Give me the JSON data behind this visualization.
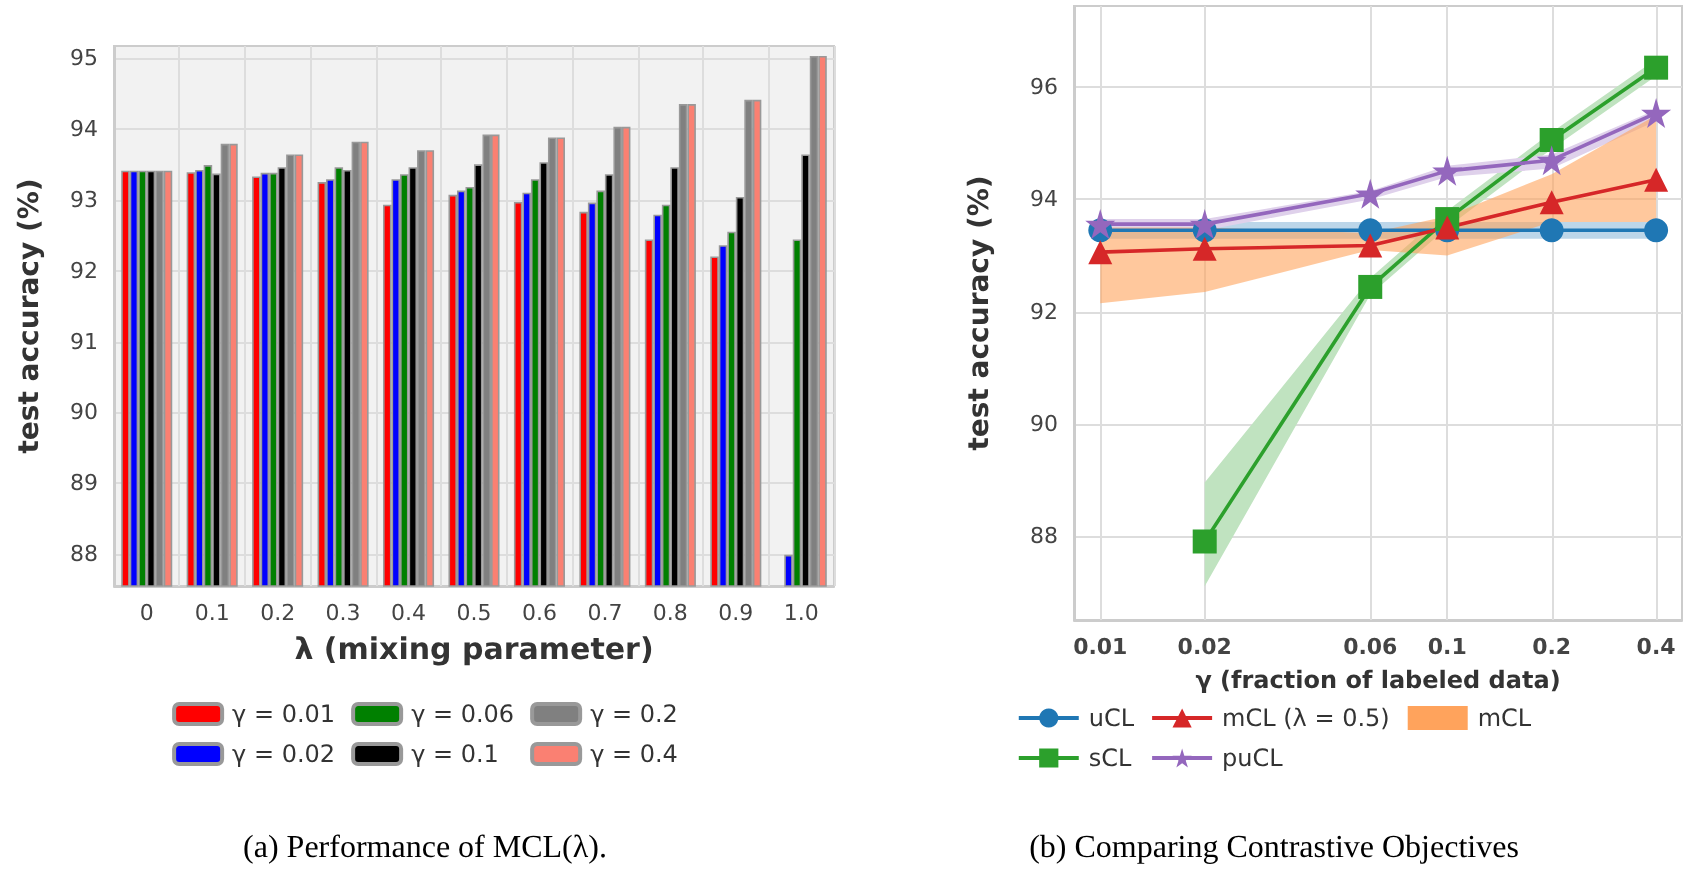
{
  "chart_data": [
    {
      "type": "bar",
      "xlabel": "λ (mixing parameter)",
      "ylabel": "test accuracy (%)",
      "annotations": [
        "(a) Performance of MCL(λ)."
      ],
      "categories": [
        "0",
        "0.1",
        "0.2",
        "0.3",
        "0.4",
        "0.5",
        "0.6",
        "0.7",
        "0.8",
        "0.9",
        "1.0"
      ],
      "ylim": [
        87.55,
        95.17
      ],
      "yticks": [
        88,
        89,
        90,
        91,
        92,
        93,
        94,
        95
      ],
      "grid": true,
      "legend": "bottom",
      "series": [
        {
          "name": "γ = 0.01",
          "color": "#ff0000",
          "values": [
            93.41,
            93.39,
            93.33,
            93.25,
            92.93,
            93.07,
            92.97,
            92.83,
            92.44,
            92.2,
            null
          ]
        },
        {
          "name": "γ = 0.02",
          "color": "#0000ff",
          "values": [
            93.41,
            93.42,
            93.38,
            93.29,
            93.29,
            93.13,
            93.1,
            92.96,
            92.79,
            92.36,
            87.99
          ]
        },
        {
          "name": "γ = 0.06",
          "color": "#008000",
          "values": [
            93.41,
            93.49,
            93.38,
            93.46,
            93.36,
            93.18,
            93.29,
            93.13,
            92.93,
            92.55,
            92.44
          ]
        },
        {
          "name": "γ = 0.1",
          "color": "#000000",
          "values": [
            93.41,
            93.37,
            93.46,
            93.42,
            93.46,
            93.5,
            93.53,
            93.36,
            93.46,
            93.04,
            93.64
          ]
        },
        {
          "name": "γ = 0.2",
          "color": "#808080",
          "values": [
            93.41,
            93.79,
            93.64,
            93.82,
            93.7,
            93.92,
            93.88,
            94.03,
            94.35,
            94.41,
            95.03
          ]
        },
        {
          "name": "γ = 0.4",
          "color": "#fa8072",
          "values": [
            93.41,
            93.79,
            93.64,
            93.82,
            93.7,
            93.92,
            93.88,
            94.03,
            94.35,
            94.41,
            95.03
          ]
        }
      ]
    },
    {
      "type": "line",
      "xlabel": "γ (fraction of labeled data)",
      "ylabel": "test accuracy (%)",
      "annotations": [
        "(b) Comparing Contrastive Objectives"
      ],
      "x": [
        0.01,
        0.02,
        0.06,
        0.1,
        0.2,
        0.4
      ],
      "log": "x",
      "xlim": [
        0.0084,
        0.475
      ],
      "xticks": [
        0.01,
        0.02,
        0.06,
        0.1,
        0.2,
        0.4
      ],
      "ylim": [
        86.5,
        97.45
      ],
      "yticks": [
        88,
        90,
        92,
        94,
        96
      ],
      "grid": true,
      "legend": "bottom",
      "series": [
        {
          "name": "uCL",
          "color": "#1f77b4",
          "marker": "circle",
          "values": [
            93.45,
            93.45,
            93.45,
            93.45,
            93.45,
            93.45
          ],
          "lower": [
            93.3,
            93.3,
            93.3,
            93.3,
            93.3,
            93.3
          ],
          "upper": [
            93.6,
            93.6,
            93.6,
            93.6,
            93.6,
            93.6
          ]
        },
        {
          "name": "sCL",
          "color": "#2ca02c",
          "marker": "square",
          "values": [
            null,
            87.9,
            92.44,
            93.65,
            95.06,
            96.35
          ],
          "lower": [
            null,
            87.1,
            92.3,
            93.5,
            94.9,
            96.2
          ],
          "upper": [
            null,
            88.95,
            92.6,
            93.8,
            95.2,
            96.5
          ]
        },
        {
          "name": "mCL (λ = 0.5)",
          "color": "#d62728",
          "marker": "triangle",
          "values": [
            93.06,
            93.12,
            93.18,
            93.5,
            93.95,
            94.35
          ]
        },
        {
          "name": "puCL",
          "color": "#9467bd",
          "marker": "star",
          "values": [
            93.56,
            93.56,
            94.1,
            94.51,
            94.7,
            95.54
          ],
          "lower": [
            93.45,
            93.45,
            94.0,
            94.4,
            94.55,
            95.4
          ],
          "upper": [
            93.65,
            93.65,
            94.15,
            94.6,
            94.8,
            95.6
          ]
        },
        {
          "name": "mCL",
          "type": "area",
          "color": "#ffa35c",
          "lower": [
            92.15,
            92.35,
            93.1,
            93.0,
            93.6,
            93.6
          ],
          "upper": [
            93.5,
            93.5,
            93.4,
            93.7,
            94.45,
            95.5
          ],
          "values": [
            null,
            null,
            null,
            null,
            null,
            null
          ]
        }
      ]
    }
  ]
}
